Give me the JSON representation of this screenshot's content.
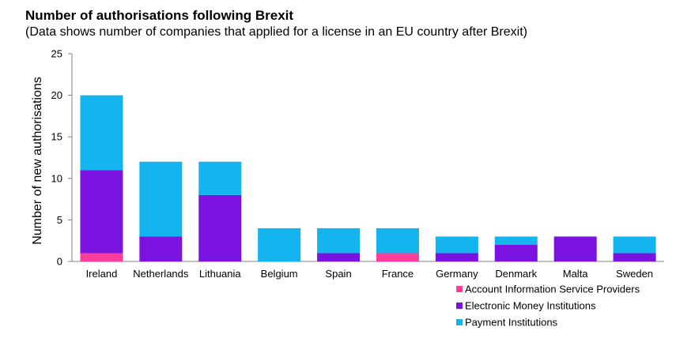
{
  "chart_data": {
    "type": "bar",
    "stacked": true,
    "title": "Number of authorisations following  Brexit",
    "subtitle": "(Data shows number of companies that applied for a license in an EU country after Brexit)",
    "xlabel": "",
    "ylabel": "Number  of new authorisations",
    "ylim": [
      0,
      25
    ],
    "yticks": [
      0,
      5,
      10,
      15,
      20,
      25
    ],
    "categories": [
      "Ireland",
      "Netherlands",
      "Lithuania",
      "Belgium",
      "Spain",
      "France",
      "Germany",
      "Denmark",
      "Malta",
      "Sweden"
    ],
    "series": [
      {
        "name": "Account Information Service Providers",
        "color": "#ff3d9a",
        "values": [
          1,
          0,
          0,
          0,
          0,
          1,
          0,
          0,
          0,
          0
        ]
      },
      {
        "name": "Electronic Money Institutions",
        "color": "#7a12e0",
        "values": [
          10,
          3,
          8,
          0,
          1,
          0,
          1,
          2,
          3,
          1
        ]
      },
      {
        "name": "Payment Institutions",
        "color": "#14b4ef",
        "values": [
          9,
          9,
          4,
          4,
          3,
          3,
          2,
          1,
          0,
          2
        ]
      }
    ],
    "legend_position": "bottom-right"
  }
}
